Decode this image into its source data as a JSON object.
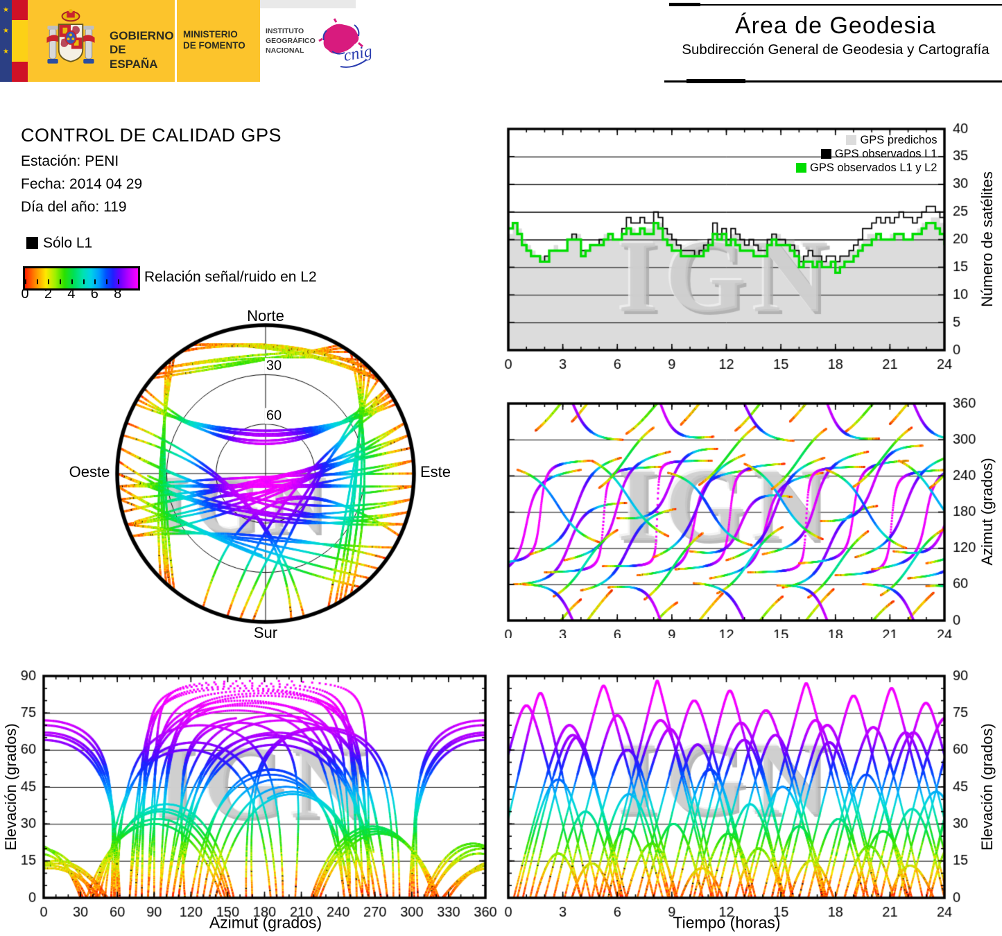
{
  "header": {
    "gobierno_line1": "GOBIERNO",
    "gobierno_line2": "DE ESPAÑA",
    "ministerio_line1": "MINISTERIO",
    "ministerio_line2": "DE FOMENTO",
    "instituto_line1": "INSTITUTO",
    "instituto_line2": "GEOGRÁFICO",
    "instituto_line3": "NACIONAL",
    "cnig_text": "cnig",
    "area_title": "Área de Geodesia",
    "area_subtitle": "Subdirección General de Geodesia y Cartografía"
  },
  "info": {
    "title": "CONTROL DE CALIDAD GPS",
    "station_line": "Estación: PENI",
    "date_line": "Fecha: 2014 04 29",
    "doy_line": "Día del año: 119",
    "solo_l1_label": "Sólo L1",
    "colorbar_label": "Relación señal/ruido en L2",
    "colorbar_tick_labels": [
      "0",
      "2",
      "4",
      "6",
      "8"
    ],
    "colorbar_tick_values": [
      0,
      1,
      2,
      3,
      4,
      5,
      6,
      7,
      8
    ]
  },
  "watermark_text": "IGN",
  "colors": {
    "predicted_fill": "#dcdcdc",
    "observed_l1": "#000000",
    "observed_l1l2": "#00dd00",
    "header_yellow": "#fcc42c",
    "watermark_gray": "#c9c9c9"
  },
  "snr_colormap": {
    "domain": [
      0,
      9.75
    ],
    "stops": [
      [
        0,
        "#ff1e00"
      ],
      [
        0.9,
        "#ff8a00"
      ],
      [
        1.8,
        "#ffe800"
      ],
      [
        2.6,
        "#a0f000"
      ],
      [
        3.4,
        "#2ae000"
      ],
      [
        4.2,
        "#00e055"
      ],
      [
        5.0,
        "#00e2b0"
      ],
      [
        5.7,
        "#00d2e8"
      ],
      [
        6.4,
        "#009cff"
      ],
      [
        7.0,
        "#0050ff"
      ],
      [
        7.6,
        "#2020ff"
      ],
      [
        8.2,
        "#6a00ff"
      ],
      [
        8.9,
        "#b400ff"
      ],
      [
        9.75,
        "#ff00ff"
      ]
    ]
  },
  "elev_to_snr": [
    [
      0,
      0.3
    ],
    [
      8,
      1.3
    ],
    [
      15,
      2.3
    ],
    [
      22,
      3.3
    ],
    [
      30,
      4.5
    ],
    [
      38,
      5.5
    ],
    [
      46,
      6.6
    ],
    [
      52,
      7.3
    ],
    [
      58,
      8.0
    ],
    [
      64,
      8.7
    ],
    [
      70,
      9.2
    ],
    [
      78,
      9.6
    ],
    [
      90,
      9.75
    ]
  ],
  "noise_seed": 119,
  "satellite_passes": [
    [
      -2.0,
      6.0,
      70,
      160,
      250,
      78
    ],
    [
      -1.0,
      5.5,
      95,
      175,
      265,
      83
    ],
    [
      0.3,
      6.2,
      60,
      130,
      195,
      70
    ],
    [
      1.2,
      5.0,
      110,
      185,
      270,
      65
    ],
    [
      2.0,
      6.5,
      80,
      170,
      255,
      86
    ],
    [
      3.1,
      5.8,
      100,
      190,
      280,
      74
    ],
    [
      4.0,
      5.2,
      50,
      120,
      185,
      60
    ],
    [
      5.2,
      6.0,
      90,
      180,
      265,
      88
    ],
    [
      6.0,
      5.5,
      170,
      215,
      285,
      68
    ],
    [
      7.1,
      6.3,
      75,
      165,
      250,
      80
    ],
    [
      8.0,
      5.0,
      105,
      195,
      275,
      62
    ],
    [
      9.2,
      6.0,
      85,
      175,
      260,
      84
    ],
    [
      10.0,
      5.6,
      115,
      160,
      205,
      71
    ],
    [
      11.1,
      6.2,
      70,
      160,
      245,
      76
    ],
    [
      12.0,
      5.4,
      100,
      185,
      270,
      66
    ],
    [
      13.2,
      6.4,
      80,
      170,
      255,
      87
    ],
    [
      14.0,
      5.8,
      110,
      195,
      280,
      72
    ],
    [
      15.1,
      5.2,
      55,
      125,
      190,
      63
    ],
    [
      16.0,
      6.0,
      95,
      180,
      265,
      82
    ],
    [
      17.2,
      5.6,
      165,
      220,
      290,
      69
    ],
    [
      18.0,
      6.2,
      75,
      165,
      250,
      85
    ],
    [
      19.1,
      5.5,
      105,
      190,
      275,
      67
    ],
    [
      20.0,
      6.0,
      85,
      175,
      260,
      79
    ],
    [
      21.2,
      5.8,
      115,
      165,
      210,
      73
    ],
    [
      22.0,
      6.3,
      70,
      160,
      245,
      81
    ],
    [
      23.0,
      5.5,
      95,
      180,
      265,
      75
    ],
    [
      0.5,
      4.5,
      250,
      190,
      130,
      48
    ],
    [
      4.6,
      4.2,
      265,
      200,
      140,
      42
    ],
    [
      8.8,
      4.6,
      245,
      185,
      125,
      52
    ],
    [
      13.0,
      4.3,
      260,
      195,
      135,
      45
    ],
    [
      17.5,
      4.4,
      250,
      185,
      120,
      50
    ],
    [
      21.5,
      4.2,
      265,
      200,
      140,
      43
    ],
    [
      1.5,
      2.5,
      315,
      355,
      35,
      18
    ],
    [
      3.5,
      2.2,
      330,
      10,
      50,
      14
    ],
    [
      6.5,
      2.8,
      310,
      350,
      30,
      22
    ],
    [
      9.5,
      2.3,
      325,
      5,
      45,
      12
    ],
    [
      12.5,
      2.6,
      315,
      358,
      40,
      20
    ],
    [
      15.5,
      2.4,
      330,
      12,
      52,
      15
    ],
    [
      18.5,
      2.7,
      312,
      352,
      32,
      21
    ],
    [
      21.0,
      2.4,
      326,
      8,
      46,
      13
    ],
    [
      2.5,
      3.5,
      40,
      95,
      150,
      35
    ],
    [
      7.5,
      3.2,
      35,
      90,
      145,
      30
    ],
    [
      11.5,
      3.6,
      45,
      100,
      155,
      38
    ],
    [
      16.5,
      3.3,
      38,
      92,
      148,
      32
    ],
    [
      20.5,
      3.5,
      42,
      98,
      152,
      36
    ],
    [
      5.0,
      3.0,
      220,
      270,
      320,
      28
    ],
    [
      10.5,
      3.1,
      225,
      272,
      322,
      26
    ],
    [
      14.5,
      3.0,
      218,
      268,
      318,
      29
    ],
    [
      19.0,
      3.2,
      222,
      270,
      320,
      27
    ],
    [
      23.2,
      3.0,
      220,
      268,
      316,
      25
    ],
    [
      0.8,
      5.5,
      60,
      0,
      300,
      66
    ],
    [
      5.5,
      5.8,
      55,
      358,
      305,
      72
    ],
    [
      10.2,
      5.5,
      62,
      2,
      298,
      64
    ],
    [
      14.8,
      5.6,
      58,
      356,
      302,
      70
    ],
    [
      19.5,
      5.5,
      60,
      4,
      300,
      67
    ],
    [
      23.0,
      5.5,
      57,
      0,
      303,
      71
    ]
  ],
  "chart_data": [
    {
      "id": "satellites",
      "type": "line",
      "style": "step",
      "x_range": [
        0,
        24
      ],
      "y_range": [
        0,
        40
      ],
      "xticks": [
        0,
        3,
        6,
        9,
        12,
        15,
        18,
        21,
        24
      ],
      "x_minor_step": 1,
      "yticks": [
        0,
        5,
        10,
        15,
        20,
        25,
        30,
        35,
        40
      ],
      "grid_y": [
        5,
        10,
        15,
        20,
        25,
        30,
        35
      ],
      "ylabel_right": "Número de satélites",
      "legend": [
        {
          "label": "GPS predichos",
          "color": "#dcdcdc"
        },
        {
          "label": "GPS observados L1",
          "color": "#000000"
        },
        {
          "label": "GPS observados L1 y L2",
          "color": "#00dd00"
        }
      ],
      "dt": 0.25,
      "series": [
        {
          "name": "GPS predichos",
          "values": [
            21,
            23,
            22,
            20,
            19,
            18,
            17,
            17,
            17,
            18,
            19,
            18,
            18,
            20,
            21,
            21,
            18,
            18,
            19,
            19,
            20,
            21,
            21,
            20,
            20,
            21,
            22,
            22,
            21,
            22,
            22,
            22,
            23,
            23,
            22,
            21,
            20,
            19,
            19,
            18,
            18,
            18,
            18,
            19,
            20,
            21,
            21,
            21,
            20,
            21,
            21,
            20,
            19,
            19,
            18,
            18,
            18,
            20,
            21,
            21,
            20,
            20,
            20,
            19,
            17,
            17,
            17,
            17,
            17,
            16,
            16,
            16,
            16,
            17,
            17,
            18,
            18,
            19,
            20,
            21,
            21,
            21,
            20,
            20,
            21,
            21,
            21,
            20,
            20,
            21,
            22,
            23,
            23,
            24,
            24,
            23,
            21
          ]
        },
        {
          "name": "GPS observados L1",
          "values": [
            22,
            23,
            21,
            19,
            18,
            17,
            17,
            16,
            17,
            18,
            18,
            18,
            18,
            20,
            21,
            20,
            18,
            18,
            19,
            19,
            20,
            20,
            21,
            20,
            20,
            22,
            24,
            23,
            23,
            24,
            23,
            23,
            25,
            24,
            22,
            21,
            20,
            19,
            18,
            18,
            18,
            17,
            18,
            19,
            20,
            23,
            21,
            22,
            20,
            22,
            21,
            20,
            19,
            20,
            19,
            18,
            18,
            20,
            21,
            20,
            20,
            19,
            19,
            18,
            16,
            17,
            18,
            17,
            17,
            16,
            17,
            17,
            16,
            17,
            17,
            18,
            19,
            20,
            22,
            22,
            23,
            24,
            23,
            24,
            23,
            24,
            25,
            24,
            24,
            23,
            24,
            25,
            26,
            26,
            25,
            24,
            22
          ]
        },
        {
          "name": "GPS observados L1 y L2",
          "values": [
            22,
            23,
            21,
            19,
            18,
            17,
            17,
            16,
            16,
            18,
            18,
            18,
            18,
            20,
            20,
            20,
            17,
            18,
            19,
            19,
            19,
            20,
            21,
            20,
            20,
            21,
            22,
            21,
            21,
            22,
            21,
            21,
            23,
            22,
            20,
            19,
            18,
            18,
            17,
            17,
            17,
            17,
            17,
            18,
            19,
            21,
            20,
            21,
            19,
            20,
            19,
            18,
            18,
            18,
            17,
            17,
            17,
            19,
            20,
            19,
            19,
            19,
            18,
            17,
            15,
            16,
            16,
            15,
            16,
            15,
            15,
            16,
            14,
            15,
            16,
            16,
            17,
            18,
            19,
            19,
            20,
            21,
            20,
            20,
            20,
            21,
            21,
            20,
            20,
            21,
            21,
            22,
            23,
            23,
            22,
            21,
            19
          ]
        }
      ]
    },
    {
      "id": "skyplot",
      "type": "scatter",
      "style": "polar-tracks",
      "labels": {
        "north": "Norte",
        "south": "Sur",
        "east": "Este",
        "west": "Oeste"
      },
      "ring_labels": [
        "30",
        "60"
      ],
      "elev_rings": [
        30,
        60
      ],
      "tracks_from": "satellite_passes"
    },
    {
      "id": "azimuth_time",
      "type": "scatter",
      "style": "tracks",
      "x_range": [
        0,
        24
      ],
      "y_range": [
        0,
        360
      ],
      "xticks": [
        0,
        3,
        6,
        9,
        12,
        15,
        18,
        21,
        24
      ],
      "x_minor_step": 1,
      "yticks": [
        0,
        60,
        120,
        180,
        240,
        300,
        360
      ],
      "grid_y": [
        60,
        120,
        180,
        240,
        300
      ],
      "ylabel_right": "Azimut (grados)",
      "tracks_from": "satellite_passes"
    },
    {
      "id": "elevation_azimuth",
      "type": "scatter",
      "style": "tracks",
      "x_range": [
        0,
        360
      ],
      "y_range": [
        0,
        90
      ],
      "xticks": [
        0,
        30,
        60,
        90,
        120,
        150,
        180,
        210,
        240,
        270,
        300,
        330,
        360
      ],
      "x_minor_step": 10,
      "yticks": [
        0,
        15,
        30,
        45,
        60,
        75,
        90
      ],
      "y_minor_step": 5,
      "grid_y": [
        15,
        30,
        45,
        60,
        75
      ],
      "ylabel_left": "Elevación (grados)",
      "xlabel": "Azimut (grados)",
      "tracks_from": "satellite_passes"
    },
    {
      "id": "elevation_time",
      "type": "scatter",
      "style": "tracks",
      "x_range": [
        0,
        24
      ],
      "y_range": [
        0,
        90
      ],
      "xticks": [
        0,
        3,
        6,
        9,
        12,
        15,
        18,
        21,
        24
      ],
      "x_minor_step": 1,
      "yticks": [
        0,
        15,
        30,
        45,
        60,
        75,
        90
      ],
      "y_minor_step": 5,
      "grid_y": [
        15,
        30,
        45,
        60,
        75
      ],
      "ylabel_right": "Elevación (grados)",
      "xlabel": "Tiempo (horas)",
      "tracks_from": "satellite_passes"
    }
  ]
}
